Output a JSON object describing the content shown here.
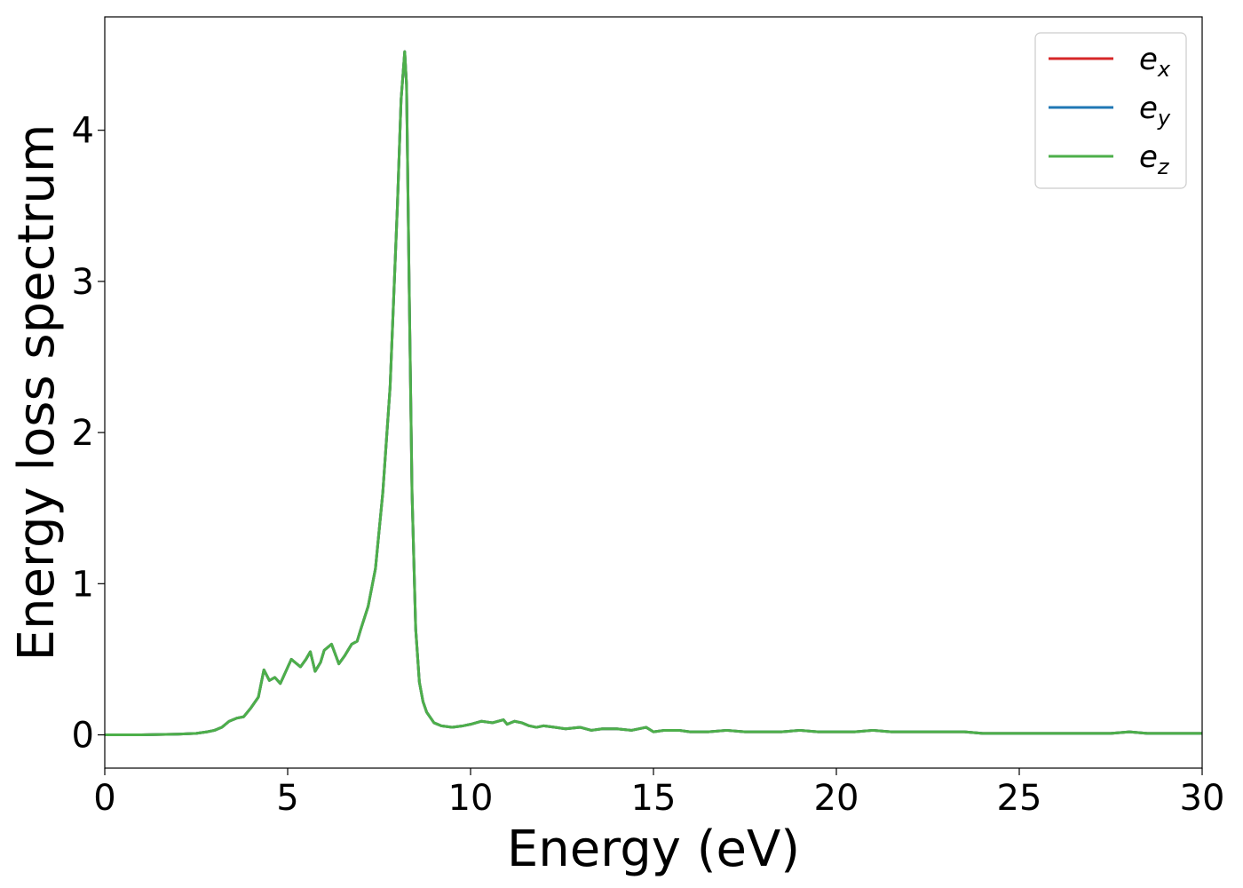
{
  "chart_data": {
    "type": "line",
    "xlabel": "Energy (eV)",
    "ylabel": "Energy loss spectrum",
    "xlim": [
      0,
      30
    ],
    "ylim": [
      -0.22,
      4.75
    ],
    "xticks": [
      0,
      5,
      10,
      15,
      20,
      25,
      30
    ],
    "yticks": [
      0,
      1,
      2,
      3,
      4
    ],
    "grid": false,
    "legend_position": "top-right",
    "series": [
      {
        "name": "e_x",
        "label_base": "e",
        "label_sub": "x",
        "color": "#d62728",
        "x": [
          0,
          1,
          2,
          2.5,
          2.8,
          3.0,
          3.2,
          3.4,
          3.6,
          3.8,
          4.0,
          4.2,
          4.35,
          4.5,
          4.65,
          4.8,
          4.95,
          5.1,
          5.2,
          5.35,
          5.5,
          5.62,
          5.75,
          5.9,
          6.0,
          6.2,
          6.4,
          6.55,
          6.75,
          6.9,
          7.0,
          7.2,
          7.4,
          7.6,
          7.8,
          8.0,
          8.1,
          8.2,
          8.25,
          8.32,
          8.4,
          8.5,
          8.6,
          8.7,
          8.8,
          9.0,
          9.2,
          9.5,
          9.8,
          10.0,
          10.3,
          10.6,
          10.9,
          11.0,
          11.2,
          11.4,
          11.6,
          11.8,
          12.0,
          12.3,
          12.6,
          13.0,
          13.3,
          13.6,
          14.0,
          14.4,
          14.8,
          15.0,
          15.3,
          15.7,
          16.0,
          16.5,
          17.0,
          17.5,
          18.0,
          18.5,
          19.0,
          19.5,
          20.0,
          20.5,
          21.0,
          21.5,
          22.0,
          22.5,
          23.0,
          23.5,
          24.0,
          24.5,
          25.0,
          25.5,
          26.0,
          26.5,
          27.0,
          27.5,
          28.0,
          28.5,
          29.0,
          29.5,
          30.0
        ],
        "y": [
          0.0,
          0.0,
          0.005,
          0.01,
          0.02,
          0.03,
          0.05,
          0.09,
          0.11,
          0.12,
          0.18,
          0.25,
          0.43,
          0.36,
          0.38,
          0.34,
          0.42,
          0.5,
          0.48,
          0.45,
          0.5,
          0.55,
          0.42,
          0.48,
          0.56,
          0.6,
          0.47,
          0.52,
          0.6,
          0.62,
          0.7,
          0.85,
          1.1,
          1.6,
          2.3,
          3.5,
          4.2,
          4.52,
          4.3,
          3.0,
          1.6,
          0.7,
          0.35,
          0.22,
          0.15,
          0.08,
          0.06,
          0.05,
          0.06,
          0.07,
          0.09,
          0.08,
          0.1,
          0.07,
          0.09,
          0.08,
          0.06,
          0.05,
          0.06,
          0.05,
          0.04,
          0.05,
          0.03,
          0.04,
          0.04,
          0.03,
          0.05,
          0.02,
          0.03,
          0.03,
          0.02,
          0.02,
          0.03,
          0.02,
          0.02,
          0.02,
          0.03,
          0.02,
          0.02,
          0.02,
          0.03,
          0.02,
          0.02,
          0.02,
          0.02,
          0.02,
          0.01,
          0.01,
          0.01,
          0.01,
          0.01,
          0.01,
          0.01,
          0.01,
          0.02,
          0.01,
          0.01,
          0.01,
          0.01
        ]
      },
      {
        "name": "e_y",
        "label_base": "e",
        "label_sub": "y",
        "color": "#1f77b4",
        "x": [
          0,
          1,
          2,
          2.5,
          2.8,
          3.0,
          3.2,
          3.4,
          3.6,
          3.8,
          4.0,
          4.2,
          4.35,
          4.5,
          4.65,
          4.8,
          4.95,
          5.1,
          5.2,
          5.35,
          5.5,
          5.62,
          5.75,
          5.9,
          6.0,
          6.2,
          6.4,
          6.55,
          6.75,
          6.9,
          7.0,
          7.2,
          7.4,
          7.6,
          7.8,
          8.0,
          8.1,
          8.2,
          8.25,
          8.32,
          8.4,
          8.5,
          8.6,
          8.7,
          8.8,
          9.0,
          9.2,
          9.5,
          9.8,
          10.0,
          10.3,
          10.6,
          10.9,
          11.0,
          11.2,
          11.4,
          11.6,
          11.8,
          12.0,
          12.3,
          12.6,
          13.0,
          13.3,
          13.6,
          14.0,
          14.4,
          14.8,
          15.0,
          15.3,
          15.7,
          16.0,
          16.5,
          17.0,
          17.5,
          18.0,
          18.5,
          19.0,
          19.5,
          20.0,
          20.5,
          21.0,
          21.5,
          22.0,
          22.5,
          23.0,
          23.5,
          24.0,
          24.5,
          25.0,
          25.5,
          26.0,
          26.5,
          27.0,
          27.5,
          28.0,
          28.5,
          29.0,
          29.5,
          30.0
        ],
        "y": [
          0.0,
          0.0,
          0.005,
          0.01,
          0.02,
          0.03,
          0.05,
          0.09,
          0.11,
          0.12,
          0.18,
          0.25,
          0.43,
          0.36,
          0.38,
          0.34,
          0.42,
          0.5,
          0.48,
          0.45,
          0.5,
          0.55,
          0.42,
          0.48,
          0.56,
          0.6,
          0.47,
          0.52,
          0.6,
          0.62,
          0.7,
          0.85,
          1.1,
          1.6,
          2.3,
          3.5,
          4.2,
          4.52,
          4.3,
          3.0,
          1.6,
          0.7,
          0.35,
          0.22,
          0.15,
          0.08,
          0.06,
          0.05,
          0.06,
          0.07,
          0.09,
          0.08,
          0.1,
          0.07,
          0.09,
          0.08,
          0.06,
          0.05,
          0.06,
          0.05,
          0.04,
          0.05,
          0.03,
          0.04,
          0.04,
          0.03,
          0.05,
          0.02,
          0.03,
          0.03,
          0.02,
          0.02,
          0.03,
          0.02,
          0.02,
          0.02,
          0.03,
          0.02,
          0.02,
          0.02,
          0.03,
          0.02,
          0.02,
          0.02,
          0.02,
          0.02,
          0.01,
          0.01,
          0.01,
          0.01,
          0.01,
          0.01,
          0.01,
          0.01,
          0.02,
          0.01,
          0.01,
          0.01,
          0.01
        ]
      },
      {
        "name": "e_z",
        "label_base": "e",
        "label_sub": "z",
        "color": "#4daf4a",
        "x": [
          0,
          1,
          2,
          2.5,
          2.8,
          3.0,
          3.2,
          3.4,
          3.6,
          3.8,
          4.0,
          4.2,
          4.35,
          4.5,
          4.65,
          4.8,
          4.95,
          5.1,
          5.2,
          5.35,
          5.5,
          5.62,
          5.75,
          5.9,
          6.0,
          6.2,
          6.4,
          6.55,
          6.75,
          6.9,
          7.0,
          7.2,
          7.4,
          7.6,
          7.8,
          8.0,
          8.1,
          8.2,
          8.25,
          8.32,
          8.4,
          8.5,
          8.6,
          8.7,
          8.8,
          9.0,
          9.2,
          9.5,
          9.8,
          10.0,
          10.3,
          10.6,
          10.9,
          11.0,
          11.2,
          11.4,
          11.6,
          11.8,
          12.0,
          12.3,
          12.6,
          13.0,
          13.3,
          13.6,
          14.0,
          14.4,
          14.8,
          15.0,
          15.3,
          15.7,
          16.0,
          16.5,
          17.0,
          17.5,
          18.0,
          18.5,
          19.0,
          19.5,
          20.0,
          20.5,
          21.0,
          21.5,
          22.0,
          22.5,
          23.0,
          23.5,
          24.0,
          24.5,
          25.0,
          25.5,
          26.0,
          26.5,
          27.0,
          27.5,
          28.0,
          28.5,
          29.0,
          29.5,
          30.0
        ],
        "y": [
          0.0,
          0.0,
          0.005,
          0.01,
          0.02,
          0.03,
          0.05,
          0.09,
          0.11,
          0.12,
          0.18,
          0.25,
          0.43,
          0.36,
          0.38,
          0.34,
          0.42,
          0.5,
          0.48,
          0.45,
          0.5,
          0.55,
          0.42,
          0.48,
          0.56,
          0.6,
          0.47,
          0.52,
          0.6,
          0.62,
          0.7,
          0.85,
          1.1,
          1.6,
          2.3,
          3.5,
          4.2,
          4.52,
          4.3,
          3.0,
          1.6,
          0.7,
          0.35,
          0.22,
          0.15,
          0.08,
          0.06,
          0.05,
          0.06,
          0.07,
          0.09,
          0.08,
          0.1,
          0.07,
          0.09,
          0.08,
          0.06,
          0.05,
          0.06,
          0.05,
          0.04,
          0.05,
          0.03,
          0.04,
          0.04,
          0.03,
          0.05,
          0.02,
          0.03,
          0.03,
          0.02,
          0.02,
          0.03,
          0.02,
          0.02,
          0.02,
          0.03,
          0.02,
          0.02,
          0.02,
          0.03,
          0.02,
          0.02,
          0.02,
          0.02,
          0.02,
          0.01,
          0.01,
          0.01,
          0.01,
          0.01,
          0.01,
          0.01,
          0.01,
          0.02,
          0.01,
          0.01,
          0.01,
          0.01
        ]
      }
    ]
  }
}
